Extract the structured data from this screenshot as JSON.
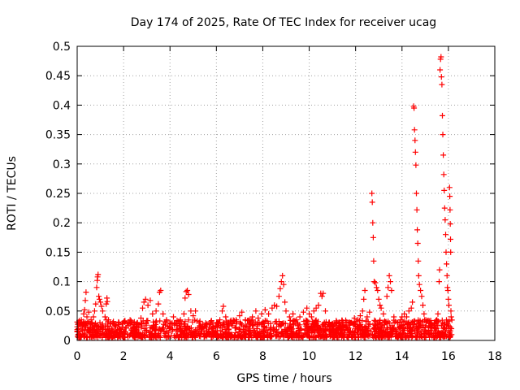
{
  "chart_data": {
    "type": "scatter",
    "title": "Day 174 of 2025, Rate Of TEC Index for receiver ucag",
    "xlabel": "GPS time / hours",
    "ylabel": "ROTI / TECUs",
    "xlim": [
      0,
      18
    ],
    "ylim": [
      0,
      0.5
    ],
    "x_ticks": [
      "0",
      "2",
      "4",
      "6",
      "8",
      "10",
      "12",
      "14",
      "16",
      "18"
    ],
    "y_ticks": [
      "0",
      "0.05",
      "0.1",
      "0.15",
      "0.2",
      "0.25",
      "0.3",
      "0.35",
      "0.4",
      "0.45",
      "0.5"
    ],
    "grid": true,
    "marker": "+",
    "marker_color": "#ff0000",
    "series": [
      {
        "points": [
          [
            0.05,
            0.02
          ],
          [
            0.08,
            0.028
          ],
          [
            0.12,
            0.015
          ],
          [
            0.18,
            0.035
          ],
          [
            0.22,
            0.025
          ],
          [
            0.28,
            0.045
          ],
          [
            0.32,
            0.052
          ],
          [
            0.35,
            0.068
          ],
          [
            0.38,
            0.082
          ],
          [
            0.42,
            0.04
          ],
          [
            0.45,
            0.03
          ],
          [
            0.5,
            0.048
          ],
          [
            0.55,
            0.022
          ],
          [
            0.6,
            0.035
          ],
          [
            0.65,
            0.028
          ],
          [
            0.7,
            0.04
          ],
          [
            0.75,
            0.05
          ],
          [
            0.8,
            0.062
          ],
          [
            0.84,
            0.09
          ],
          [
            0.86,
            0.102
          ],
          [
            0.88,
            0.108
          ],
          [
            0.9,
            0.112
          ],
          [
            0.93,
            0.075
          ],
          [
            0.96,
            0.07
          ],
          [
            1.0,
            0.065
          ],
          [
            1.05,
            0.058
          ],
          [
            1.1,
            0.05
          ],
          [
            1.2,
            0.04
          ],
          [
            1.25,
            0.062
          ],
          [
            1.28,
            0.072
          ],
          [
            1.3,
            0.066
          ],
          [
            1.35,
            0.035
          ],
          [
            1.45,
            0.028
          ],
          [
            1.55,
            0.03
          ],
          [
            1.65,
            0.025
          ],
          [
            1.8,
            0.03
          ],
          [
            1.95,
            0.028
          ],
          [
            2.05,
            0.032
          ],
          [
            2.2,
            0.025
          ],
          [
            2.4,
            0.022
          ],
          [
            2.6,
            0.03
          ],
          [
            2.75,
            0.038
          ],
          [
            2.82,
            0.055
          ],
          [
            2.88,
            0.065
          ],
          [
            2.95,
            0.07
          ],
          [
            3.05,
            0.06
          ],
          [
            3.15,
            0.068
          ],
          [
            3.25,
            0.045
          ],
          [
            3.4,
            0.05
          ],
          [
            3.5,
            0.062
          ],
          [
            3.55,
            0.082
          ],
          [
            3.6,
            0.085
          ],
          [
            3.7,
            0.045
          ],
          [
            3.85,
            0.035
          ],
          [
            4.0,
            0.03
          ],
          [
            4.15,
            0.04
          ],
          [
            4.3,
            0.028
          ],
          [
            4.45,
            0.035
          ],
          [
            4.6,
            0.045
          ],
          [
            4.65,
            0.072
          ],
          [
            4.7,
            0.083
          ],
          [
            4.75,
            0.085
          ],
          [
            4.8,
            0.078
          ],
          [
            4.9,
            0.05
          ],
          [
            5.0,
            0.042
          ],
          [
            5.1,
            0.05
          ],
          [
            5.25,
            0.03
          ],
          [
            5.4,
            0.022
          ],
          [
            5.6,
            0.028
          ],
          [
            5.8,
            0.02
          ],
          [
            6.0,
            0.025
          ],
          [
            6.15,
            0.035
          ],
          [
            6.25,
            0.05
          ],
          [
            6.3,
            0.058
          ],
          [
            6.4,
            0.04
          ],
          [
            6.55,
            0.025
          ],
          [
            6.7,
            0.03
          ],
          [
            6.85,
            0.035
          ],
          [
            7.0,
            0.042
          ],
          [
            7.1,
            0.048
          ],
          [
            7.25,
            0.035
          ],
          [
            7.4,
            0.028
          ],
          [
            7.55,
            0.04
          ],
          [
            7.7,
            0.05
          ],
          [
            7.8,
            0.038
          ],
          [
            7.95,
            0.045
          ],
          [
            8.1,
            0.052
          ],
          [
            8.25,
            0.045
          ],
          [
            8.4,
            0.055
          ],
          [
            8.5,
            0.06
          ],
          [
            8.6,
            0.058
          ],
          [
            8.7,
            0.075
          ],
          [
            8.75,
            0.088
          ],
          [
            8.8,
            0.1
          ],
          [
            8.85,
            0.11
          ],
          [
            8.9,
            0.095
          ],
          [
            8.95,
            0.065
          ],
          [
            9.0,
            0.05
          ],
          [
            9.15,
            0.04
          ],
          [
            9.3,
            0.045
          ],
          [
            9.45,
            0.035
          ],
          [
            9.6,
            0.04
          ],
          [
            9.75,
            0.048
          ],
          [
            9.9,
            0.055
          ],
          [
            10.0,
            0.045
          ],
          [
            10.1,
            0.04
          ],
          [
            10.2,
            0.05
          ],
          [
            10.3,
            0.055
          ],
          [
            10.4,
            0.06
          ],
          [
            10.5,
            0.08
          ],
          [
            10.55,
            0.075
          ],
          [
            10.6,
            0.08
          ],
          [
            10.7,
            0.05
          ],
          [
            10.85,
            0.03
          ],
          [
            11.0,
            0.025
          ],
          [
            11.2,
            0.02
          ],
          [
            11.4,
            0.018
          ],
          [
            11.6,
            0.022
          ],
          [
            11.8,
            0.03
          ],
          [
            11.95,
            0.038
          ],
          [
            12.1,
            0.035
          ],
          [
            12.2,
            0.042
          ],
          [
            12.3,
            0.05
          ],
          [
            12.35,
            0.07
          ],
          [
            12.4,
            0.085
          ],
          [
            12.5,
            0.04
          ],
          [
            12.6,
            0.048
          ],
          [
            12.7,
            0.25
          ],
          [
            12.72,
            0.235
          ],
          [
            12.74,
            0.2
          ],
          [
            12.76,
            0.175
          ],
          [
            12.78,
            0.135
          ],
          [
            12.8,
            0.1
          ],
          [
            12.85,
            0.098
          ],
          [
            12.9,
            0.09
          ],
          [
            12.95,
            0.085
          ],
          [
            13.0,
            0.07
          ],
          [
            13.05,
            0.06
          ],
          [
            13.1,
            0.055
          ],
          [
            13.2,
            0.045
          ],
          [
            13.35,
            0.075
          ],
          [
            13.4,
            0.09
          ],
          [
            13.45,
            0.11
          ],
          [
            13.5,
            0.1
          ],
          [
            13.55,
            0.085
          ],
          [
            13.65,
            0.04
          ],
          [
            13.8,
            0.03
          ],
          [
            13.95,
            0.035
          ],
          [
            14.0,
            0.04
          ],
          [
            14.1,
            0.045
          ],
          [
            14.2,
            0.04
          ],
          [
            14.3,
            0.05
          ],
          [
            14.4,
            0.055
          ],
          [
            14.45,
            0.065
          ],
          [
            14.5,
            0.398
          ],
          [
            14.52,
            0.395
          ],
          [
            14.54,
            0.358
          ],
          [
            14.56,
            0.34
          ],
          [
            14.58,
            0.32
          ],
          [
            14.6,
            0.298
          ],
          [
            14.62,
            0.25
          ],
          [
            14.64,
            0.222
          ],
          [
            14.66,
            0.188
          ],
          [
            14.68,
            0.165
          ],
          [
            14.7,
            0.135
          ],
          [
            14.72,
            0.11
          ],
          [
            14.75,
            0.095
          ],
          [
            14.8,
            0.085
          ],
          [
            14.85,
            0.075
          ],
          [
            14.9,
            0.06
          ],
          [
            14.95,
            0.045
          ],
          [
            15.05,
            0.03
          ],
          [
            15.15,
            0.025
          ],
          [
            15.3,
            0.022
          ],
          [
            15.4,
            0.028
          ],
          [
            15.5,
            0.035
          ],
          [
            15.55,
            0.045
          ],
          [
            15.6,
            0.1
          ],
          [
            15.62,
            0.12
          ],
          [
            15.64,
            0.46
          ],
          [
            15.66,
            0.478
          ],
          [
            15.68,
            0.482
          ],
          [
            15.7,
            0.448
          ],
          [
            15.72,
            0.435
          ],
          [
            15.74,
            0.382
          ],
          [
            15.76,
            0.35
          ],
          [
            15.78,
            0.315
          ],
          [
            15.8,
            0.282
          ],
          [
            15.82,
            0.255
          ],
          [
            15.84,
            0.225
          ],
          [
            15.86,
            0.205
          ],
          [
            15.88,
            0.18
          ],
          [
            15.9,
            0.15
          ],
          [
            15.92,
            0.13
          ],
          [
            15.94,
            0.11
          ],
          [
            15.96,
            0.09
          ],
          [
            15.98,
            0.085
          ],
          [
            16.0,
            0.07
          ],
          [
            16.02,
            0.06
          ],
          [
            16.05,
            0.26
          ],
          [
            16.06,
            0.245
          ],
          [
            16.07,
            0.222
          ],
          [
            16.08,
            0.198
          ],
          [
            16.09,
            0.172
          ],
          [
            16.1,
            0.15
          ],
          [
            16.11,
            0.05
          ],
          [
            16.12,
            0.04
          ],
          [
            16.13,
            0.02
          ]
        ]
      }
    ]
  }
}
